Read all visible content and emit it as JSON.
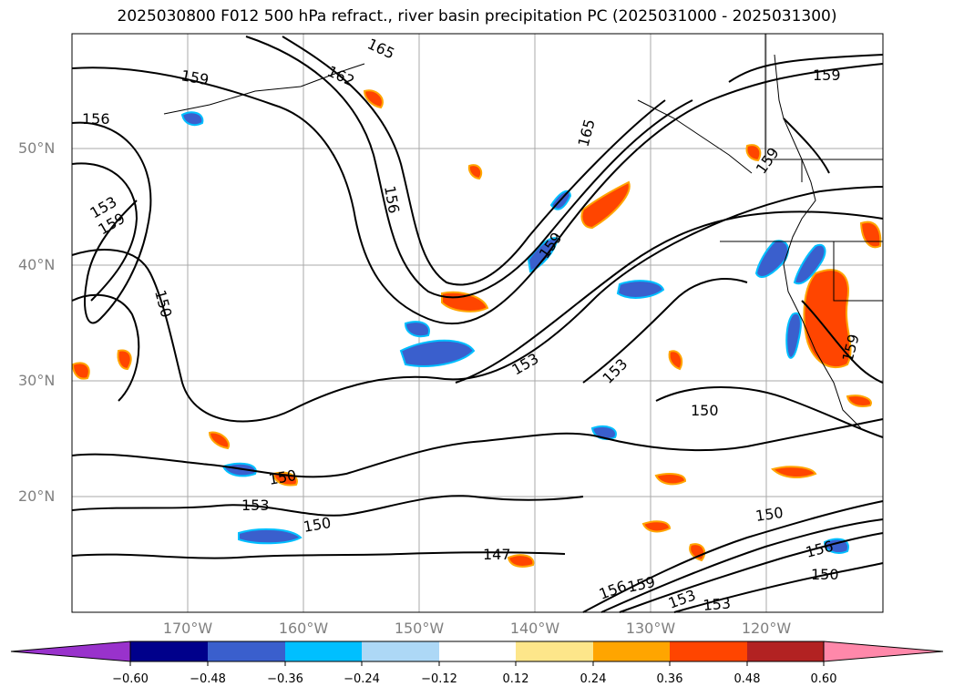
{
  "title": "2025030800 F012 500 hPa refract., river basin precipitation PC (2025031000 - 2025031300)",
  "lat_labels": [
    "50°N",
    "40°N",
    "30°N",
    "20°N"
  ],
  "lon_labels": [
    "170°W",
    "160°W",
    "150°W",
    "140°W",
    "130°W",
    "120°W"
  ],
  "contour_labels": [
    {
      "text": "159",
      "region": "nw-pacific"
    },
    {
      "text": "162",
      "region": "gulf-of-alaska"
    },
    {
      "text": "165",
      "region": "gulf-of-alaska"
    },
    {
      "text": "156",
      "region": "west-pacific"
    },
    {
      "text": "153",
      "region": "west-pacific"
    },
    {
      "text": "159",
      "region": "west-pacific"
    },
    {
      "text": "156",
      "region": "central-pacific"
    },
    {
      "text": "150",
      "region": "west-pacific"
    },
    {
      "text": "165",
      "region": "ne-pacific"
    },
    {
      "text": "159",
      "region": "ne-pacific"
    },
    {
      "text": "159",
      "region": "british-columbia"
    },
    {
      "text": "159",
      "region": "canada"
    },
    {
      "text": "153",
      "region": "east-pacific"
    },
    {
      "text": "153",
      "region": "east-pacific"
    },
    {
      "text": "150",
      "region": "east-pacific"
    },
    {
      "text": "159",
      "region": "california"
    },
    {
      "text": "150",
      "region": "subtropical"
    },
    {
      "text": "153",
      "region": "subtropical"
    },
    {
      "text": "150",
      "region": "subtropical"
    },
    {
      "text": "147",
      "region": "tropical"
    },
    {
      "text": "150",
      "region": "mexico"
    },
    {
      "text": "156",
      "region": "mexico"
    },
    {
      "text": "150",
      "region": "mexico"
    },
    {
      "text": "159",
      "region": "tropical"
    },
    {
      "text": "156",
      "region": "tropical"
    },
    {
      "text": "153",
      "region": "tropical"
    },
    {
      "text": "153",
      "region": "tropical"
    }
  ],
  "colorbar": {
    "ticks": [
      "−0.60",
      "−0.48",
      "−0.36",
      "−0.24",
      "−0.12",
      "0.12",
      "0.24",
      "0.36",
      "0.48",
      "0.60"
    ],
    "colors": [
      "#9932cc",
      "#00008b",
      "#3a5fcd",
      "#00bfff",
      "#add8f6",
      "#ffffff",
      "#fde68a",
      "#ffa500",
      "#ff4500",
      "#b22222",
      "#ff88aa"
    ]
  },
  "colors": {
    "contour": "#000000",
    "grid": "#aaaaaa",
    "label": "#808080"
  }
}
